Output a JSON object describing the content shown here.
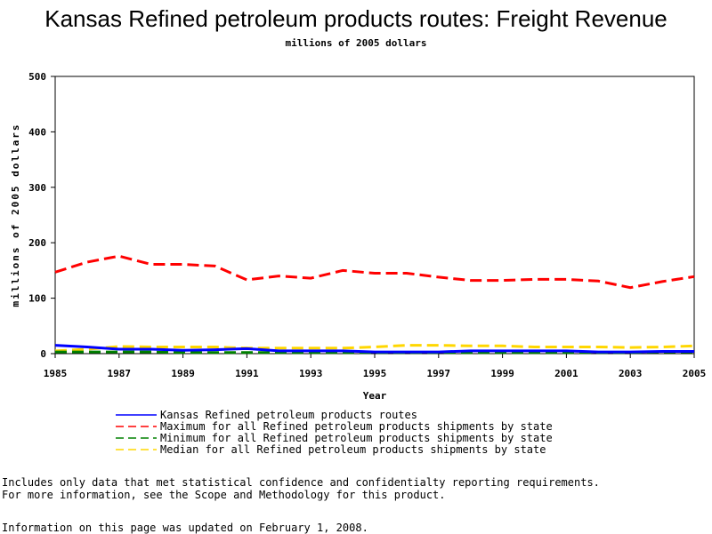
{
  "chart_data": {
    "type": "line",
    "title": "Kansas Refined petroleum products routes: Freight Revenue",
    "subtitle": "millions of 2005 dollars",
    "xlabel": "Year",
    "ylabel": "millions of 2005 dollars",
    "xlim": [
      1985,
      2005
    ],
    "ylim": [
      0,
      500
    ],
    "xticks": [
      "1985",
      "1987",
      "1989",
      "1991",
      "1993",
      "1995",
      "1997",
      "1999",
      "2001",
      "2003",
      "2005"
    ],
    "yticks": [
      "0",
      "100",
      "200",
      "300",
      "400",
      "500"
    ],
    "x": [
      1985,
      1986,
      1987,
      1988,
      1989,
      1990,
      1991,
      1992,
      1993,
      1994,
      1995,
      1996,
      1997,
      1998,
      1999,
      2000,
      2001,
      2002,
      2003,
      2004,
      2005
    ],
    "series": [
      {
        "name": "Kansas Refined petroleum products routes",
        "color": "#0000ff",
        "dash": "solid",
        "values": [
          15,
          12,
          8,
          8,
          6,
          7,
          9,
          5,
          5,
          5,
          3,
          3,
          3,
          5,
          5,
          5,
          5,
          3,
          3,
          4,
          4
        ]
      },
      {
        "name": "Maximum for all Refined petroleum products shipments by state",
        "color": "#ff0000",
        "dash": "dashed",
        "values": [
          147,
          165,
          176,
          161,
          161,
          158,
          133,
          140,
          136,
          150,
          145,
          145,
          138,
          132,
          132,
          134,
          134,
          131,
          119,
          130,
          139
        ]
      },
      {
        "name": "Minimum for all Refined petroleum products shipments by state",
        "color": "#008000",
        "dash": "dashed",
        "values": [
          3,
          3,
          3,
          3,
          2,
          2,
          2,
          2,
          2,
          2,
          2,
          2,
          2,
          2,
          2,
          2,
          2,
          2,
          2,
          3,
          3
        ]
      },
      {
        "name": "Median for all Refined petroleum products shipments by state",
        "color": "#ffd700",
        "dash": "dashed",
        "values": [
          5,
          8,
          13,
          12,
          12,
          12,
          10,
          10,
          10,
          10,
          12,
          15,
          15,
          14,
          14,
          12,
          12,
          12,
          11,
          12,
          14
        ]
      }
    ],
    "grid": false,
    "legend_position": "bottom"
  },
  "notes": {
    "line1": "Includes only data that met statistical confidence and confidentialty reporting requirements.",
    "line2": "For more information, see the Scope and Methodology for this product.",
    "updated": "Information on this page was updated on February 1, 2008."
  }
}
